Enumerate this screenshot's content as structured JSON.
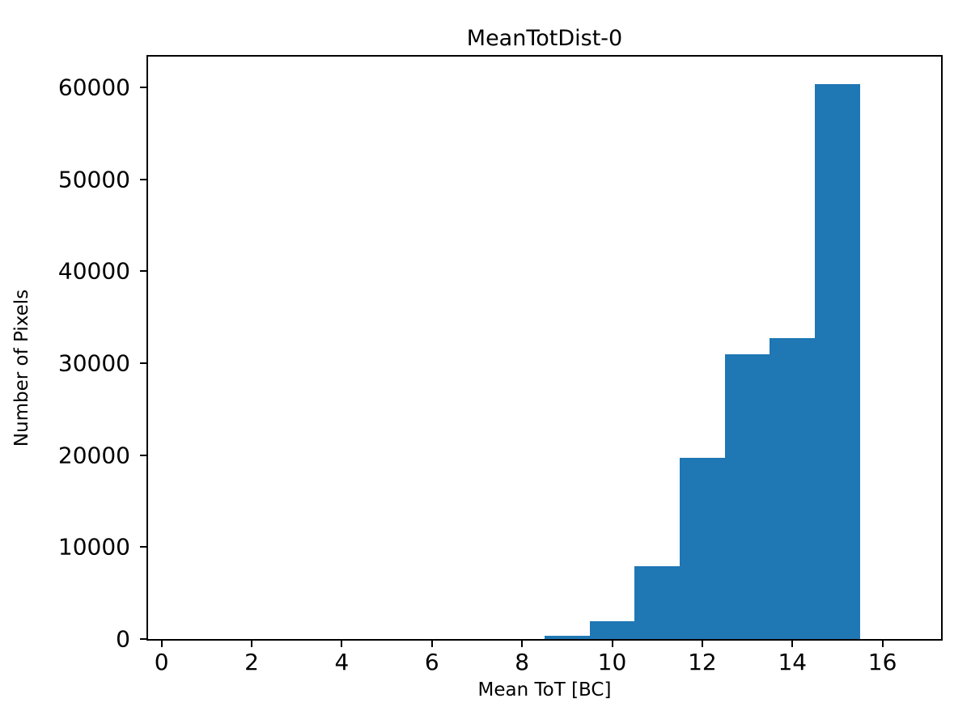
{
  "figure": {
    "title": "MeanTotDist-0",
    "xlabel": "Mean ToT [BC]",
    "ylabel": "Number of Pixels"
  },
  "colors": {
    "bar": "#1f77b4",
    "axis": "#000000",
    "background": "#ffffff"
  },
  "chart_data": {
    "type": "bar",
    "subtype": "histogram",
    "title": "MeanTotDist-0",
    "xlabel": "Mean ToT [BC]",
    "ylabel": "Number of Pixels",
    "bin_edges": [
      0.5,
      1.5,
      2.5,
      3.5,
      4.5,
      5.5,
      6.5,
      7.5,
      8.5,
      9.5,
      10.5,
      11.5,
      12.5,
      13.5,
      14.5,
      15.5,
      16.5
    ],
    "counts": [
      0,
      0,
      0,
      0,
      0,
      0,
      0,
      0,
      400,
      1900,
      7950,
      19700,
      31000,
      32750,
      60300,
      0
    ],
    "xticks": [
      0,
      2,
      4,
      6,
      8,
      10,
      12,
      14,
      16
    ],
    "xtick_labels": [
      "0",
      "2",
      "4",
      "6",
      "8",
      "10",
      "12",
      "14",
      "16"
    ],
    "yticks": [
      0,
      10000,
      20000,
      30000,
      40000,
      50000,
      60000
    ],
    "ytick_labels": [
      "0",
      "10000",
      "20000",
      "30000",
      "40000",
      "50000",
      "60000"
    ],
    "xlim": [
      -0.3,
      17.3
    ],
    "ylim": [
      0,
      63320
    ],
    "grid": false,
    "legend": null
  }
}
